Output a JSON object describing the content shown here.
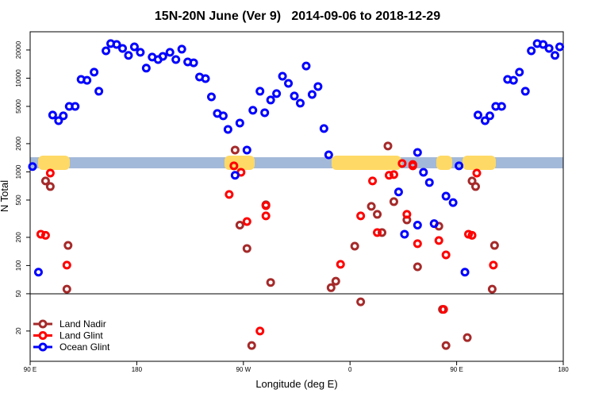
{
  "chart_data": {
    "type": "scatter",
    "title": "15N-20N June (Ver 9)   2014-09-06 to 2018-12-29",
    "x_label": "Longitude (deg E)",
    "y_label": "N Total",
    "y_scale": "log",
    "xlim": [
      90,
      540
    ],
    "ylim": [
      9.5,
      31300
    ],
    "xticks": [
      {
        "value": 90,
        "label": "90 E"
      },
      180,
      {
        "value": 270,
        "label": "90 W"
      },
      {
        "value": 360,
        "label": "0"
      },
      {
        "value": 450,
        "label": "90 E"
      },
      {
        "value": 540,
        "label": "180"
      }
    ],
    "yticks": [
      20,
      50,
      100,
      200,
      500,
      1000,
      2000,
      5000,
      10000,
      20000
    ],
    "legend": "bottom-left",
    "series": [
      {
        "name": "Land Nadir",
        "color": "#a52a2a",
        "x": [
          103,
          107,
          121,
          122,
          263,
          267,
          273,
          277,
          289,
          293,
          344,
          348,
          364,
          369,
          378,
          383,
          387,
          392,
          397,
          408,
          417,
          435,
          438,
          441,
          459,
          463,
          466,
          480,
          482
        ],
        "values": [
          800,
          697,
          56,
          164,
          1710,
          270,
          152,
          14,
          445,
          66,
          58,
          68,
          161,
          41,
          428,
          352,
          225,
          1890,
          481,
          307,
          97,
          263,
          34,
          14,
          17,
          800,
          697,
          56,
          164
        ]
      },
      {
        "name": "Land Glint",
        "color": "#ff0000",
        "x": [
          99,
          103,
          107,
          121,
          258,
          262,
          268,
          273,
          284,
          289,
          289,
          352,
          369,
          379,
          383,
          393,
          397,
          404,
          408,
          413,
          413,
          417,
          435,
          439,
          441,
          460,
          463,
          467,
          481
        ],
        "values": [
          216,
          210,
          970,
          101,
          574,
          1160,
          990,
          295,
          20,
          339,
          436,
          103,
          339,
          800,
          225,
          920,
          935,
          1230,
          352,
          1200,
          1160,
          171,
          185,
          34,
          130,
          216,
          210,
          970,
          101
        ]
      },
      {
        "name": "Ocean Glint",
        "color": "#0000ff",
        "x": [
          92,
          97,
          109,
          114,
          118,
          123,
          128,
          133,
          138,
          144,
          148,
          154,
          158,
          163,
          168,
          173,
          178,
          183,
          188,
          193,
          198,
          202,
          208,
          213,
          218,
          223,
          228,
          233,
          238,
          243,
          248,
          253,
          257,
          263,
          267,
          273,
          278,
          284,
          288,
          293,
          298,
          303,
          308,
          313,
          318,
          323,
          328,
          333,
          338,
          342,
          401,
          406,
          417,
          417,
          422,
          427,
          431,
          441,
          447,
          452,
          457,
          468,
          474,
          478,
          483,
          488,
          493,
          498,
          503,
          508,
          513,
          518,
          523,
          528,
          533,
          537
        ],
        "values": [
          1140,
          85,
          4040,
          3520,
          3960,
          5000,
          5000,
          9700,
          9500,
          11600,
          7250,
          19600,
          23400,
          22900,
          20800,
          17500,
          21600,
          18900,
          12800,
          16800,
          15800,
          17100,
          18900,
          15800,
          20400,
          14900,
          14600,
          10300,
          9900,
          6320,
          4200,
          3960,
          2840,
          920,
          3320,
          1710,
          4540,
          7250,
          4280,
          5850,
          6840,
          10500,
          8800,
          6450,
          5410,
          13500,
          6700,
          8150,
          2900,
          1520,
          610,
          216,
          270,
          1610,
          990,
          770,
          280,
          550,
          470,
          1160,
          85,
          4040,
          3520,
          3960,
          5000,
          5000,
          9700,
          9500,
          11600,
          7250,
          19600,
          23400,
          22900,
          20800,
          17500,
          21600
        ]
      }
    ]
  }
}
